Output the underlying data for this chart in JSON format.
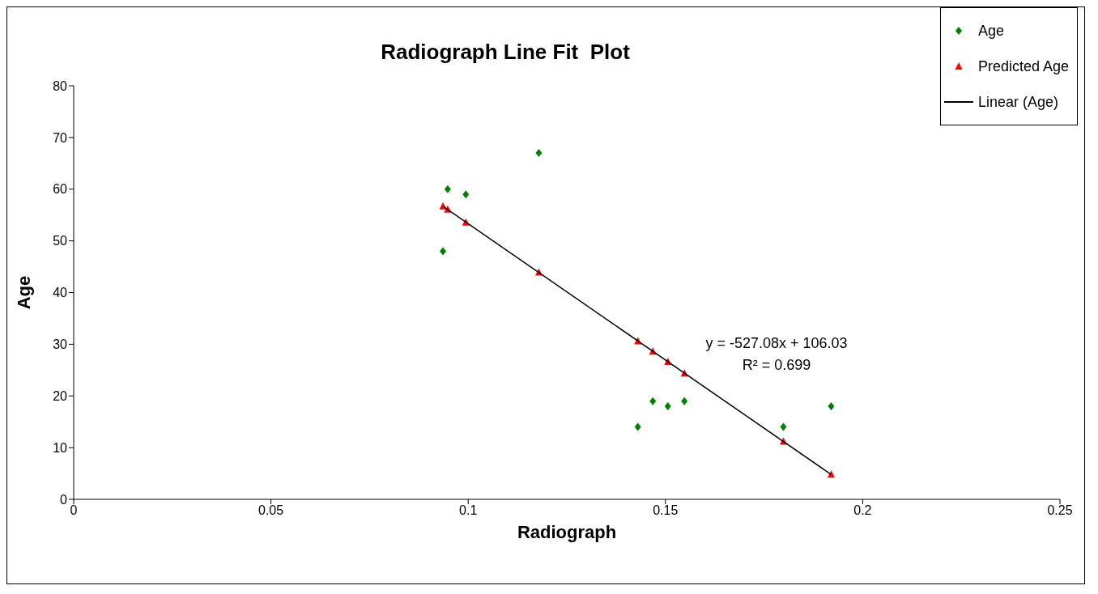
{
  "chart_data": {
    "type": "scatter",
    "title": "Radiograph Line Fit  Plot",
    "xlabel": "Radiograph",
    "ylabel": "Age",
    "series": [
      {
        "name": "Age",
        "marker": "diamond",
        "color": "#008000",
        "x": [
          0.0936,
          0.0948,
          0.0994,
          0.1179,
          0.143,
          0.1468,
          0.1506,
          0.1548,
          0.1799,
          0.192
        ],
        "values": [
          48,
          60,
          59,
          67,
          14,
          19,
          18,
          19,
          14,
          18
        ]
      },
      {
        "name": "Predicted Age",
        "marker": "triangle",
        "color": "#ff0000",
        "x": [
          0.0936,
          0.0948,
          0.0994,
          0.1179,
          0.143,
          0.1468,
          0.1506,
          0.1548,
          0.1799,
          0.192
        ],
        "values": [
          56.7,
          56.1,
          53.6,
          43.9,
          30.6,
          28.6,
          26.6,
          24.4,
          11.2,
          4.8
        ]
      },
      {
        "name": "Linear (Age)",
        "type": "line",
        "marker": "none",
        "color": "#000000",
        "x": [
          0.0936,
          0.192
        ],
        "values": [
          56.7,
          4.8
        ]
      }
    ],
    "annotations": [
      "y = -527.08x + 106.03",
      "R² = 0.699"
    ],
    "xlim": [
      0,
      0.25
    ],
    "xticks": [
      0,
      0.05,
      0.1,
      0.15,
      0.2,
      0.25
    ],
    "ylim": [
      0,
      80
    ],
    "yticks": [
      0,
      10,
      20,
      30,
      40,
      50,
      60,
      70,
      80
    ],
    "legend": "top right"
  }
}
